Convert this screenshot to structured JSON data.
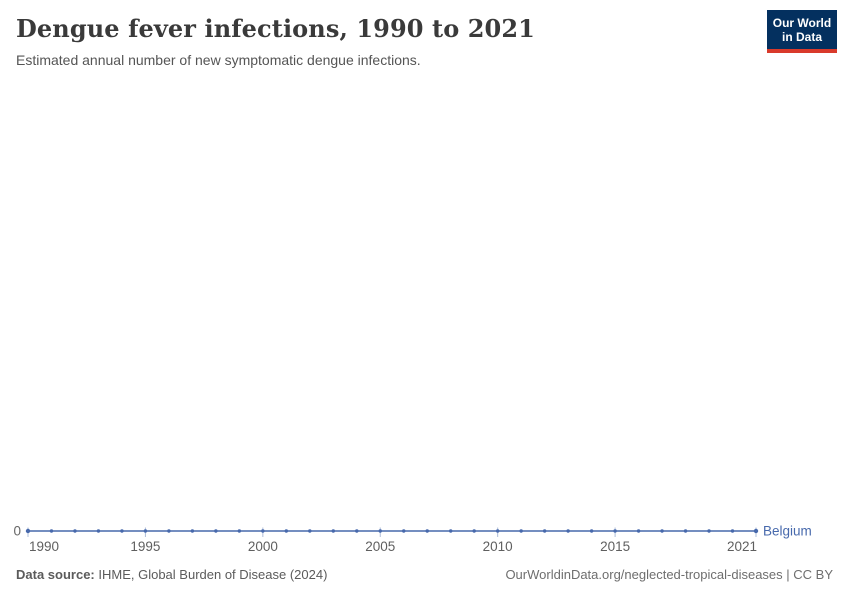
{
  "header": {
    "title": "Dengue fever infections, 1990 to 2021",
    "subtitle": "Estimated annual number of new symptomatic dengue infections.",
    "logo_line1": "Our World",
    "logo_line2": "in Data"
  },
  "chart_data": {
    "type": "line",
    "title": "Dengue fever infections, 1990 to 2021",
    "xlabel": "",
    "ylabel": "",
    "grid": false,
    "legend_position": "end-of-line-label",
    "x": [
      1990,
      1991,
      1992,
      1993,
      1994,
      1995,
      1996,
      1997,
      1998,
      1999,
      2000,
      2001,
      2002,
      2003,
      2004,
      2005,
      2006,
      2007,
      2008,
      2009,
      2010,
      2011,
      2012,
      2013,
      2014,
      2015,
      2016,
      2017,
      2018,
      2019,
      2020,
      2021
    ],
    "series": [
      {
        "name": "Belgium",
        "values": [
          0,
          0,
          0,
          0,
          0,
          0,
          0,
          0,
          0,
          0,
          0,
          0,
          0,
          0,
          0,
          0,
          0,
          0,
          0,
          0,
          0,
          0,
          0,
          0,
          0,
          0,
          0,
          0,
          0,
          0,
          0,
          0
        ]
      }
    ],
    "xticks": [
      1990,
      1995,
      2000,
      2005,
      2010,
      2015,
      2021
    ],
    "ytick_labels": [
      "0"
    ],
    "xlim": [
      1990,
      2021
    ],
    "ylim": [
      0,
      0
    ]
  },
  "colors": {
    "line": "#4769ac",
    "entity_label": "#4769ac",
    "tick_mark": "#aebdd8",
    "tick_text": "#5f5f5f",
    "y_axis_text": "#666666",
    "logo_bg": "#04305f",
    "logo_red": "#d93a2b",
    "title_text": "#3a3a3a"
  },
  "footer": {
    "source_label": "Data source:",
    "source_text": "IHME, Global Burden of Disease (2024)",
    "link_text": "OurWorldinData.org/neglected-tropical-diseases | CC BY"
  }
}
